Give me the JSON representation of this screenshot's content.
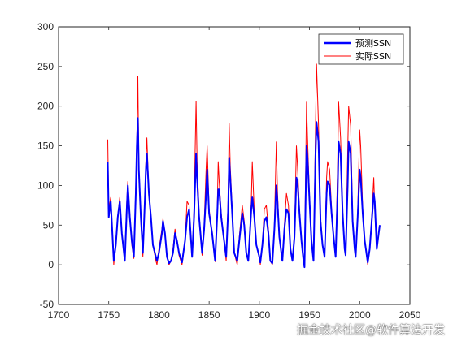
{
  "chart_data": {
    "type": "line",
    "title": "",
    "xlabel": "",
    "ylabel": "",
    "xlim": [
      1700,
      2050
    ],
    "ylim": [
      -50,
      300
    ],
    "x_ticks": [
      1700,
      1750,
      1800,
      1850,
      1900,
      1950,
      2000,
      2050
    ],
    "y_ticks": [
      -50,
      0,
      50,
      100,
      150,
      200,
      250,
      300
    ],
    "grid": false,
    "legend_position": "top-right",
    "series": [
      {
        "name": "预测SSN",
        "color": "#0000ff",
        "line_width": "thick",
        "points": [
          [
            1749,
            130
          ],
          [
            1750,
            60
          ],
          [
            1752,
            80
          ],
          [
            1755,
            5
          ],
          [
            1757,
            25
          ],
          [
            1759,
            60
          ],
          [
            1761,
            80
          ],
          [
            1763,
            40
          ],
          [
            1766,
            5
          ],
          [
            1768,
            70
          ],
          [
            1769,
            100
          ],
          [
            1771,
            60
          ],
          [
            1773,
            30
          ],
          [
            1775,
            10
          ],
          [
            1777,
            90
          ],
          [
            1778,
            150
          ],
          [
            1779,
            185
          ],
          [
            1780,
            120
          ],
          [
            1782,
            60
          ],
          [
            1784,
            15
          ],
          [
            1786,
            80
          ],
          [
            1787,
            120
          ],
          [
            1788,
            140
          ],
          [
            1790,
            90
          ],
          [
            1792,
            60
          ],
          [
            1794,
            25
          ],
          [
            1797,
            10
          ],
          [
            1798,
            5
          ],
          [
            1800,
            15
          ],
          [
            1803,
            40
          ],
          [
            1804,
            55
          ],
          [
            1806,
            40
          ],
          [
            1808,
            10
          ],
          [
            1810,
            2
          ],
          [
            1812,
            5
          ],
          [
            1814,
            15
          ],
          [
            1816,
            40
          ],
          [
            1818,
            30
          ],
          [
            1820,
            15
          ],
          [
            1823,
            3
          ],
          [
            1826,
            30
          ],
          [
            1828,
            60
          ],
          [
            1830,
            70
          ],
          [
            1831,
            50
          ],
          [
            1833,
            10
          ],
          [
            1835,
            60
          ],
          [
            1837,
            140
          ],
          [
            1838,
            110
          ],
          [
            1840,
            60
          ],
          [
            1843,
            15
          ],
          [
            1845,
            45
          ],
          [
            1847,
            90
          ],
          [
            1848,
            120
          ],
          [
            1850,
            65
          ],
          [
            1853,
            40
          ],
          [
            1856,
            5
          ],
          [
            1858,
            60
          ],
          [
            1859,
            95
          ],
          [
            1860,
            95
          ],
          [
            1862,
            60
          ],
          [
            1864,
            40
          ],
          [
            1867,
            10
          ],
          [
            1869,
            70
          ],
          [
            1870,
            135
          ],
          [
            1871,
            110
          ],
          [
            1873,
            65
          ],
          [
            1875,
            15
          ],
          [
            1878,
            5
          ],
          [
            1880,
            30
          ],
          [
            1883,
            65
          ],
          [
            1885,
            50
          ],
          [
            1887,
            15
          ],
          [
            1889,
            5
          ],
          [
            1892,
            70
          ],
          [
            1893,
            85
          ],
          [
            1895,
            60
          ],
          [
            1897,
            25
          ],
          [
            1900,
            10
          ],
          [
            1901,
            3
          ],
          [
            1903,
            25
          ],
          [
            1905,
            55
          ],
          [
            1907,
            60
          ],
          [
            1909,
            40
          ],
          [
            1911,
            5
          ],
          [
            1913,
            2
          ],
          [
            1915,
            45
          ],
          [
            1917,
            100
          ],
          [
            1918,
            80
          ],
          [
            1920,
            35
          ],
          [
            1923,
            5
          ],
          [
            1925,
            45
          ],
          [
            1927,
            70
          ],
          [
            1929,
            65
          ],
          [
            1931,
            20
          ],
          [
            1933,
            5
          ],
          [
            1935,
            35
          ],
          [
            1937,
            110
          ],
          [
            1938,
            105
          ],
          [
            1940,
            65
          ],
          [
            1942,
            30
          ],
          [
            1944,
            5
          ],
          [
            1945,
            -3
          ],
          [
            1947,
            150
          ],
          [
            1948,
            135
          ],
          [
            1950,
            80
          ],
          [
            1952,
            30
          ],
          [
            1954,
            5
          ],
          [
            1956,
            140
          ],
          [
            1957,
            180
          ],
          [
            1959,
            155
          ],
          [
            1961,
            55
          ],
          [
            1963,
            25
          ],
          [
            1965,
            10
          ],
          [
            1967,
            90
          ],
          [
            1968,
            105
          ],
          [
            1970,
            100
          ],
          [
            1972,
            65
          ],
          [
            1974,
            35
          ],
          [
            1976,
            10
          ],
          [
            1978,
            90
          ],
          [
            1979,
            155
          ],
          [
            1981,
            140
          ],
          [
            1983,
            65
          ],
          [
            1985,
            20
          ],
          [
            1986,
            12
          ],
          [
            1988,
            100
          ],
          [
            1989,
            155
          ],
          [
            1991,
            140
          ],
          [
            1993,
            55
          ],
          [
            1995,
            20
          ],
          [
            1996,
            10
          ],
          [
            1998,
            60
          ],
          [
            2000,
            120
          ],
          [
            2001,
            110
          ],
          [
            2003,
            65
          ],
          [
            2005,
            30
          ],
          [
            2008,
            3
          ],
          [
            2010,
            20
          ],
          [
            2012,
            55
          ],
          [
            2014,
            90
          ],
          [
            2015,
            80
          ],
          [
            2017,
            20
          ],
          [
            2019,
            40
          ],
          [
            2020,
            50
          ]
        ]
      },
      {
        "name": "实际SSN",
        "color": "#ff0000",
        "line_width": "thin",
        "points": [
          [
            1749,
            158
          ],
          [
            1750,
            70
          ],
          [
            1752,
            85
          ],
          [
            1755,
            0
          ],
          [
            1757,
            30
          ],
          [
            1759,
            62
          ],
          [
            1761,
            85
          ],
          [
            1763,
            40
          ],
          [
            1766,
            10
          ],
          [
            1768,
            80
          ],
          [
            1769,
            105
          ],
          [
            1771,
            65
          ],
          [
            1773,
            25
          ],
          [
            1775,
            8
          ],
          [
            1777,
            100
          ],
          [
            1778,
            158
          ],
          [
            1779,
            238
          ],
          [
            1780,
            125
          ],
          [
            1782,
            55
          ],
          [
            1784,
            10
          ],
          [
            1786,
            85
          ],
          [
            1787,
            130
          ],
          [
            1788,
            160
          ],
          [
            1790,
            90
          ],
          [
            1792,
            60
          ],
          [
            1794,
            25
          ],
          [
            1797,
            5
          ],
          [
            1798,
            0
          ],
          [
            1800,
            20
          ],
          [
            1803,
            45
          ],
          [
            1804,
            58
          ],
          [
            1806,
            40
          ],
          [
            1808,
            10
          ],
          [
            1810,
            0
          ],
          [
            1812,
            5
          ],
          [
            1814,
            20
          ],
          [
            1816,
            45
          ],
          [
            1818,
            30
          ],
          [
            1820,
            12
          ],
          [
            1823,
            0
          ],
          [
            1826,
            30
          ],
          [
            1828,
            80
          ],
          [
            1830,
            75
          ],
          [
            1831,
            50
          ],
          [
            1833,
            10
          ],
          [
            1835,
            70
          ],
          [
            1837,
            206
          ],
          [
            1838,
            130
          ],
          [
            1840,
            65
          ],
          [
            1843,
            12
          ],
          [
            1845,
            50
          ],
          [
            1847,
            120
          ],
          [
            1848,
            150
          ],
          [
            1850,
            70
          ],
          [
            1853,
            40
          ],
          [
            1856,
            4
          ],
          [
            1858,
            65
          ],
          [
            1859,
            130
          ],
          [
            1860,
            105
          ],
          [
            1862,
            65
          ],
          [
            1864,
            40
          ],
          [
            1867,
            5
          ],
          [
            1869,
            85
          ],
          [
            1870,
            178
          ],
          [
            1871,
            125
          ],
          [
            1873,
            70
          ],
          [
            1875,
            15
          ],
          [
            1878,
            0
          ],
          [
            1880,
            35
          ],
          [
            1883,
            75
          ],
          [
            1885,
            55
          ],
          [
            1887,
            15
          ],
          [
            1889,
            5
          ],
          [
            1892,
            80
          ],
          [
            1893,
            130
          ],
          [
            1895,
            65
          ],
          [
            1897,
            25
          ],
          [
            1900,
            8
          ],
          [
            1901,
            0
          ],
          [
            1903,
            25
          ],
          [
            1905,
            70
          ],
          [
            1907,
            75
          ],
          [
            1909,
            45
          ],
          [
            1911,
            5
          ],
          [
            1913,
            0
          ],
          [
            1915,
            50
          ],
          [
            1917,
            155
          ],
          [
            1918,
            95
          ],
          [
            1920,
            35
          ],
          [
            1923,
            5
          ],
          [
            1925,
            50
          ],
          [
            1927,
            90
          ],
          [
            1929,
            75
          ],
          [
            1931,
            20
          ],
          [
            1933,
            5
          ],
          [
            1935,
            40
          ],
          [
            1937,
            150
          ],
          [
            1938,
            125
          ],
          [
            1940,
            70
          ],
          [
            1942,
            30
          ],
          [
            1944,
            8
          ],
          [
            1945,
            0
          ],
          [
            1947,
            205
          ],
          [
            1948,
            160
          ],
          [
            1950,
            85
          ],
          [
            1952,
            30
          ],
          [
            1954,
            5
          ],
          [
            1956,
            175
          ],
          [
            1957,
            253
          ],
          [
            1959,
            175
          ],
          [
            1961,
            60
          ],
          [
            1963,
            25
          ],
          [
            1965,
            10
          ],
          [
            1967,
            110
          ],
          [
            1968,
            130
          ],
          [
            1970,
            120
          ],
          [
            1972,
            70
          ],
          [
            1974,
            35
          ],
          [
            1976,
            10
          ],
          [
            1978,
            120
          ],
          [
            1979,
            205
          ],
          [
            1981,
            160
          ],
          [
            1983,
            70
          ],
          [
            1985,
            20
          ],
          [
            1986,
            12
          ],
          [
            1988,
            140
          ],
          [
            1989,
            200
          ],
          [
            1991,
            175
          ],
          [
            1993,
            60
          ],
          [
            1995,
            20
          ],
          [
            1996,
            10
          ],
          [
            1998,
            65
          ],
          [
            2000,
            170
          ],
          [
            2001,
            150
          ],
          [
            2003,
            70
          ],
          [
            2005,
            30
          ],
          [
            2008,
            0
          ],
          [
            2010,
            20
          ],
          [
            2012,
            60
          ],
          [
            2014,
            110
          ],
          [
            2015,
            70
          ],
          [
            2017,
            20
          ]
        ]
      }
    ]
  },
  "watermark": "掘金技术社区@软件算法开发"
}
